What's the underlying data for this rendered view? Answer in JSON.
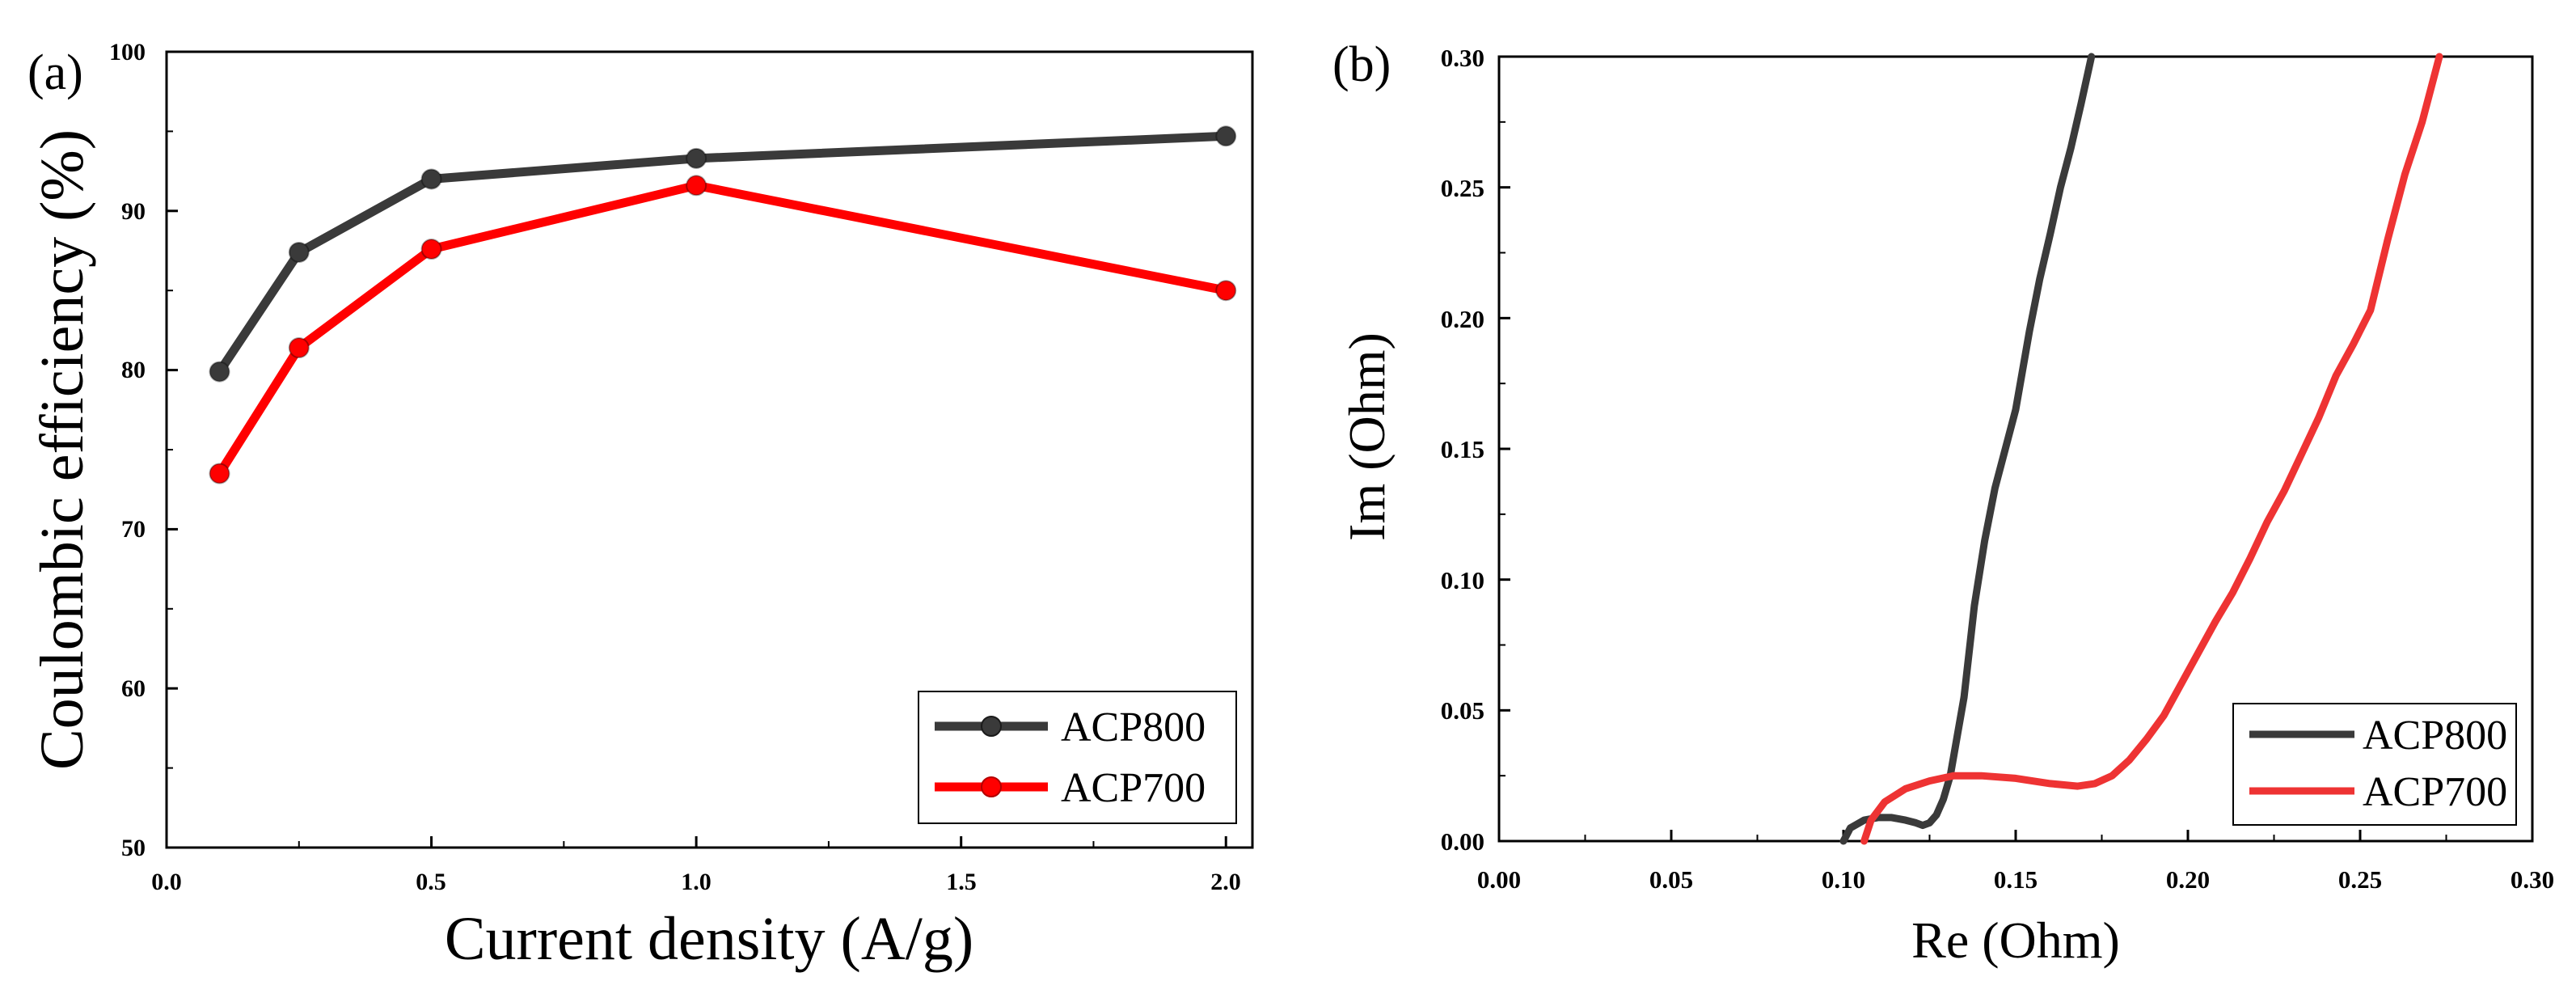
{
  "chart_data": [
    {
      "panel": "(a)",
      "type": "line",
      "xlabel": "Current density (A/g)",
      "ylabel": "Coulombic efficiency (%)",
      "xlim": [
        0.0,
        2.05
      ],
      "ylim": [
        50,
        100
      ],
      "x_ticks": [
        0.0,
        0.5,
        1.0,
        1.5,
        2.0
      ],
      "x_tick_labels": [
        "0.0",
        "0.5",
        "1.0",
        "1.5",
        "2.0"
      ],
      "y_ticks": [
        50,
        60,
        70,
        80,
        90,
        100
      ],
      "y_tick_labels": [
        "50",
        "60",
        "70",
        "80",
        "90",
        "100"
      ],
      "legend_position": "bottom-right",
      "series": [
        {
          "name": "ACP800",
          "color": "#3a3a3a",
          "marker": "circle",
          "x": [
            0.1,
            0.25,
            0.5,
            1.0,
            2.0
          ],
          "y": [
            79.9,
            87.4,
            92.0,
            93.3,
            94.7
          ]
        },
        {
          "name": "ACP700",
          "color": "#ff0000",
          "marker": "circle",
          "x": [
            0.1,
            0.25,
            0.5,
            1.0,
            2.0
          ],
          "y": [
            73.5,
            81.4,
            87.6,
            91.6,
            85.0
          ]
        }
      ]
    },
    {
      "panel": "(b)",
      "type": "line",
      "xlabel": "Re (Ohm)",
      "ylabel": "Im (Ohm)",
      "xlim": [
        0.0,
        0.3
      ],
      "ylim": [
        0.0,
        0.3
      ],
      "x_ticks": [
        0.0,
        0.05,
        0.1,
        0.15,
        0.2,
        0.25,
        0.3
      ],
      "x_tick_labels": [
        "0.00",
        "0.05",
        "0.10",
        "0.15",
        "0.20",
        "0.25",
        "0.30"
      ],
      "y_ticks": [
        0.0,
        0.05,
        0.1,
        0.15,
        0.2,
        0.25,
        0.3
      ],
      "y_tick_labels": [
        "0.00",
        "0.05",
        "0.10",
        "0.15",
        "0.20",
        "0.25",
        "0.30"
      ],
      "legend_position": "bottom-right",
      "series": [
        {
          "name": "ACP800",
          "color": "#3a3a3a",
          "x": [
            0.1,
            0.102,
            0.106,
            0.11,
            0.114,
            0.118,
            0.121,
            0.123,
            0.125,
            0.127,
            0.129,
            0.131,
            0.133,
            0.135,
            0.138,
            0.141,
            0.144,
            0.147,
            0.15,
            0.152,
            0.154,
            0.157,
            0.16,
            0.163,
            0.166,
            0.169,
            0.172
          ],
          "y": [
            0.0,
            0.005,
            0.008,
            0.009,
            0.009,
            0.008,
            0.007,
            0.006,
            0.007,
            0.01,
            0.016,
            0.025,
            0.04,
            0.055,
            0.09,
            0.115,
            0.135,
            0.15,
            0.165,
            0.18,
            0.195,
            0.215,
            0.232,
            0.25,
            0.265,
            0.282,
            0.3
          ]
        },
        {
          "name": "ACP700",
          "color": "#ee3333",
          "x": [
            0.106,
            0.108,
            0.112,
            0.118,
            0.125,
            0.132,
            0.14,
            0.15,
            0.16,
            0.168,
            0.173,
            0.178,
            0.183,
            0.188,
            0.193,
            0.198,
            0.203,
            0.208,
            0.213,
            0.218,
            0.223,
            0.228,
            0.233,
            0.238,
            0.243,
            0.248,
            0.253,
            0.258,
            0.263,
            0.268,
            0.273
          ],
          "y": [
            0.0,
            0.008,
            0.015,
            0.02,
            0.023,
            0.025,
            0.025,
            0.024,
            0.022,
            0.021,
            0.022,
            0.025,
            0.031,
            0.039,
            0.048,
            0.06,
            0.072,
            0.084,
            0.095,
            0.108,
            0.122,
            0.134,
            0.148,
            0.162,
            0.178,
            0.19,
            0.203,
            0.23,
            0.255,
            0.275,
            0.3
          ]
        }
      ]
    }
  ]
}
